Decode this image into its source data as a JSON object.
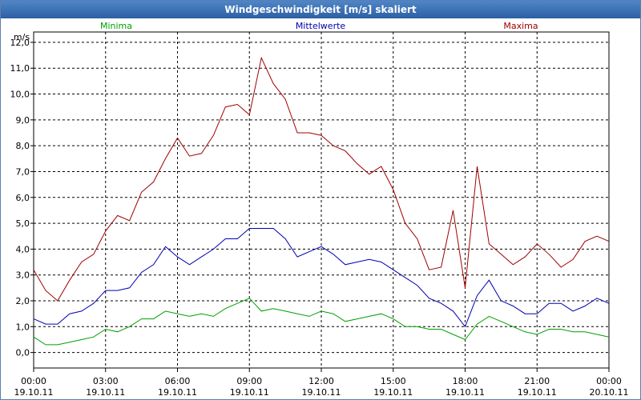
{
  "window": {
    "title": "Windgeschwindigkeit [m/s] skaliert"
  },
  "chart_data": {
    "type": "line",
    "title": "Windgeschwindigkeit [m/s] skaliert",
    "ylabel": "m/s",
    "xlabel": "",
    "ylim": [
      -0.6,
      12.4
    ],
    "xlim": [
      0,
      24
    ],
    "grid": true,
    "legend_position": "top",
    "y_ticks": [
      "0,0",
      "1,0",
      "2,0",
      "3,0",
      "4,0",
      "5,0",
      "6,0",
      "7,0",
      "8,0",
      "9,0",
      "10,0",
      "11,0",
      "12,0"
    ],
    "x_ticks": [
      {
        "time": "00:00",
        "date": "19.10.11"
      },
      {
        "time": "03:00",
        "date": "19.10.11"
      },
      {
        "time": "06:00",
        "date": "19.10.11"
      },
      {
        "time": "09:00",
        "date": "19.10.11"
      },
      {
        "time": "12:00",
        "date": "19.10.11"
      },
      {
        "time": "15:00",
        "date": "19.10.11"
      },
      {
        "time": "18:00",
        "date": "19.10.11"
      },
      {
        "time": "21:00",
        "date": "19.10.11"
      },
      {
        "time": "00:00",
        "date": "20.10.11"
      }
    ],
    "series": [
      {
        "name": "Minima",
        "color": "#00a000",
        "x": [
          0.0,
          0.5,
          1.0,
          1.5,
          2.0,
          2.5,
          3.0,
          3.5,
          4.0,
          4.5,
          5.0,
          5.5,
          6.0,
          6.5,
          7.0,
          7.5,
          8.0,
          8.5,
          9.0,
          9.5,
          10.0,
          10.5,
          11.0,
          11.5,
          12.0,
          12.5,
          13.0,
          13.5,
          14.0,
          14.5,
          15.0,
          15.5,
          16.0,
          16.5,
          17.0,
          17.5,
          18.0,
          18.5,
          19.0,
          19.5,
          20.0,
          20.5,
          21.0,
          21.5,
          22.0,
          22.5,
          23.0,
          23.5,
          24.0
        ],
        "values": [
          0.6,
          0.3,
          0.3,
          0.4,
          0.5,
          0.6,
          0.9,
          0.8,
          1.0,
          1.3,
          1.3,
          1.6,
          1.5,
          1.4,
          1.5,
          1.4,
          1.7,
          1.9,
          2.1,
          1.6,
          1.7,
          1.6,
          1.5,
          1.4,
          1.6,
          1.5,
          1.2,
          1.3,
          1.4,
          1.5,
          1.3,
          1.0,
          1.0,
          0.9,
          0.9,
          0.7,
          0.5,
          1.1,
          1.4,
          1.2,
          1.0,
          0.8,
          0.7,
          0.9,
          0.9,
          0.8,
          0.8,
          0.7,
          0.6
        ]
      },
      {
        "name": "Mittelwerte",
        "color": "#0000b0",
        "x": [
          0.0,
          0.5,
          1.0,
          1.5,
          2.0,
          2.5,
          3.0,
          3.5,
          4.0,
          4.5,
          5.0,
          5.5,
          6.0,
          6.5,
          7.0,
          7.5,
          8.0,
          8.5,
          9.0,
          9.5,
          10.0,
          10.5,
          11.0,
          11.5,
          12.0,
          12.5,
          13.0,
          13.5,
          14.0,
          14.5,
          15.0,
          15.5,
          16.0,
          16.5,
          17.0,
          17.5,
          18.0,
          18.5,
          19.0,
          19.5,
          20.0,
          20.5,
          21.0,
          21.5,
          22.0,
          22.5,
          23.0,
          23.5,
          24.0
        ],
        "values": [
          1.3,
          1.1,
          1.1,
          1.5,
          1.6,
          1.9,
          2.4,
          2.4,
          2.5,
          3.1,
          3.4,
          4.1,
          3.7,
          3.4,
          3.7,
          4.0,
          4.4,
          4.4,
          4.8,
          4.8,
          4.8,
          4.4,
          3.7,
          3.9,
          4.1,
          3.8,
          3.4,
          3.5,
          3.6,
          3.5,
          3.2,
          2.9,
          2.6,
          2.1,
          1.9,
          1.6,
          1.0,
          2.2,
          2.8,
          2.0,
          1.8,
          1.5,
          1.5,
          1.9,
          1.9,
          1.6,
          1.8,
          2.1,
          1.9
        ]
      },
      {
        "name": "Maxima",
        "color": "#a00000",
        "x": [
          0.0,
          0.5,
          1.0,
          1.5,
          2.0,
          2.5,
          3.0,
          3.5,
          4.0,
          4.5,
          5.0,
          5.5,
          6.0,
          6.5,
          7.0,
          7.5,
          8.0,
          8.5,
          9.0,
          9.5,
          10.0,
          10.5,
          11.0,
          11.5,
          12.0,
          12.5,
          13.0,
          13.5,
          14.0,
          14.5,
          15.0,
          15.5,
          16.0,
          16.5,
          17.0,
          17.5,
          18.0,
          18.5,
          19.0,
          19.5,
          20.0,
          20.5,
          21.0,
          21.5,
          22.0,
          22.5,
          23.0,
          23.5,
          24.0
        ],
        "values": [
          3.2,
          2.4,
          2.0,
          2.8,
          3.5,
          3.8,
          4.7,
          5.3,
          5.1,
          6.2,
          6.6,
          7.5,
          8.3,
          7.6,
          7.7,
          8.4,
          9.5,
          9.6,
          9.2,
          11.4,
          10.4,
          9.8,
          8.5,
          8.5,
          8.4,
          8.0,
          7.8,
          7.3,
          6.9,
          7.2,
          6.3,
          5.0,
          4.4,
          3.2,
          3.3,
          5.5,
          2.5,
          7.2,
          4.2,
          3.8,
          3.4,
          3.7,
          4.2,
          3.8,
          3.3,
          3.6,
          4.3,
          4.5,
          4.3
        ]
      }
    ]
  }
}
